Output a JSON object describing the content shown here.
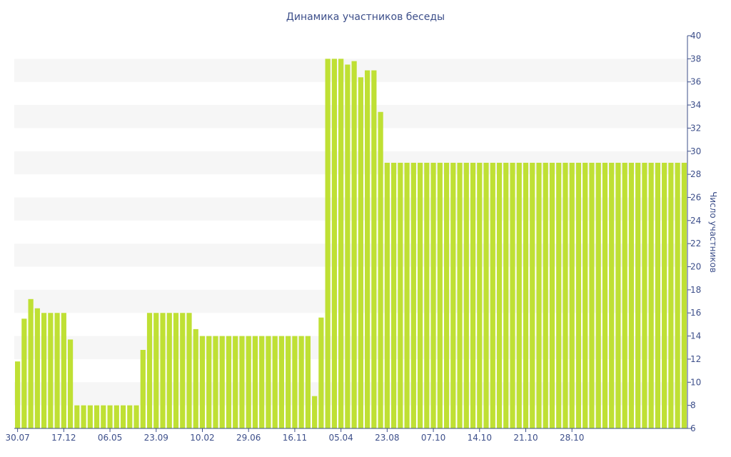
{
  "colors": {
    "bar": "#bfe034",
    "text": "#3d4f8a",
    "band": "#f6f6f6",
    "axis": "#3d4f8a"
  },
  "chart_data": {
    "type": "bar",
    "title": "Динамика участников беседы",
    "ylabel": "Число участников",
    "xlabel": "",
    "ylim": [
      6,
      40
    ],
    "y_ticks": [
      6,
      8,
      10,
      12,
      14,
      16,
      18,
      20,
      22,
      24,
      26,
      28,
      30,
      32,
      34,
      36,
      38,
      40
    ],
    "y_axis_side": "right",
    "grid": "alternating horizontal bands",
    "x_tick_labels": [
      {
        "index": 0,
        "label": "30.07"
      },
      {
        "index": 7,
        "label": "17.12"
      },
      {
        "index": 14,
        "label": "06.05"
      },
      {
        "index": 21,
        "label": "23.09"
      },
      {
        "index": 28,
        "label": "10.02"
      },
      {
        "index": 35,
        "label": "29.06"
      },
      {
        "index": 42,
        "label": "16.11"
      },
      {
        "index": 49,
        "label": "05.04"
      },
      {
        "index": 56,
        "label": "23.08"
      },
      {
        "index": 63,
        "label": "07.10"
      },
      {
        "index": 70,
        "label": "14.10"
      },
      {
        "index": 77,
        "label": "21.10"
      },
      {
        "index": 84,
        "label": "28.10"
      }
    ],
    "values": [
      11.8,
      15.5,
      17.2,
      16.4,
      16,
      16,
      16,
      16,
      13.7,
      8,
      8,
      8,
      8,
      8,
      8,
      8,
      8,
      8,
      8,
      12.8,
      16,
      16,
      16,
      16,
      16,
      16,
      16,
      14.6,
      14,
      14,
      14,
      14,
      14,
      14,
      14,
      14,
      14,
      14,
      14,
      14,
      14,
      14,
      14,
      14,
      14,
      8.8,
      15.6,
      38,
      38,
      38,
      37.5,
      37.8,
      36.4,
      37,
      37,
      33.4,
      29,
      29,
      29,
      29,
      29,
      29,
      29,
      29,
      29,
      29,
      29,
      29,
      29,
      29,
      29,
      29,
      29,
      29,
      29,
      29,
      29,
      29,
      29,
      29,
      29,
      29,
      29,
      29,
      29,
      29,
      29,
      29,
      29,
      29,
      29,
      29,
      29,
      29,
      29,
      29,
      29,
      29,
      29,
      29,
      29,
      29
    ]
  }
}
